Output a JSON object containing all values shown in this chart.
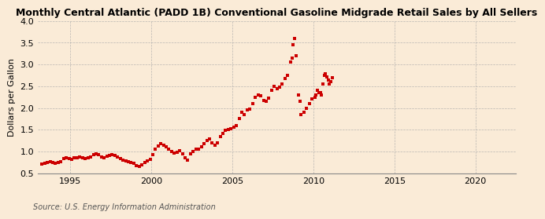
{
  "title": "Monthly Central Atlantic (PADD 1B) Conventional Gasoline Midgrade Retail Sales by All Sellers",
  "ylabel": "Dollars per Gallon",
  "source": "Source: U.S. Energy Information Administration",
  "background_color": "#faebd7",
  "line_color": "#cc0000",
  "marker": "s",
  "markersize": 3.2,
  "xlim": [
    1993.0,
    2022.5
  ],
  "ylim": [
    0.5,
    4.0
  ],
  "yticks": [
    0.5,
    1.0,
    1.5,
    2.0,
    2.5,
    3.0,
    3.5,
    4.0
  ],
  "xticks": [
    1995,
    2000,
    2005,
    2010,
    2015,
    2020
  ],
  "data": [
    [
      1993.25,
      0.71
    ],
    [
      1993.42,
      0.73
    ],
    [
      1993.58,
      0.75
    ],
    [
      1993.75,
      0.76
    ],
    [
      1993.92,
      0.74
    ],
    [
      1994.08,
      0.73
    ],
    [
      1994.25,
      0.75
    ],
    [
      1994.42,
      0.77
    ],
    [
      1994.58,
      0.84
    ],
    [
      1994.75,
      0.85
    ],
    [
      1994.92,
      0.83
    ],
    [
      1995.08,
      0.82
    ],
    [
      1995.25,
      0.85
    ],
    [
      1995.42,
      0.86
    ],
    [
      1995.58,
      0.88
    ],
    [
      1995.75,
      0.86
    ],
    [
      1995.92,
      0.84
    ],
    [
      1996.08,
      0.85
    ],
    [
      1996.25,
      0.87
    ],
    [
      1996.42,
      0.92
    ],
    [
      1996.58,
      0.95
    ],
    [
      1996.75,
      0.92
    ],
    [
      1996.92,
      0.88
    ],
    [
      1997.08,
      0.86
    ],
    [
      1997.25,
      0.89
    ],
    [
      1997.42,
      0.9
    ],
    [
      1997.58,
      0.92
    ],
    [
      1997.75,
      0.9
    ],
    [
      1997.92,
      0.88
    ],
    [
      1998.08,
      0.84
    ],
    [
      1998.25,
      0.8
    ],
    [
      1998.42,
      0.78
    ],
    [
      1998.58,
      0.77
    ],
    [
      1998.75,
      0.75
    ],
    [
      1998.92,
      0.72
    ],
    [
      1999.08,
      0.68
    ],
    [
      1999.25,
      0.65
    ],
    [
      1999.42,
      0.7
    ],
    [
      1999.58,
      0.75
    ],
    [
      1999.75,
      0.79
    ],
    [
      1999.92,
      0.82
    ],
    [
      2000.08,
      0.92
    ],
    [
      2000.25,
      1.05
    ],
    [
      2000.42,
      1.12
    ],
    [
      2000.58,
      1.18
    ],
    [
      2000.75,
      1.14
    ],
    [
      2000.92,
      1.1
    ],
    [
      2001.08,
      1.05
    ],
    [
      2001.25,
      1.0
    ],
    [
      2001.42,
      0.96
    ],
    [
      2001.58,
      0.98
    ],
    [
      2001.75,
      1.02
    ],
    [
      2001.92,
      0.95
    ],
    [
      2002.08,
      0.85
    ],
    [
      2002.25,
      0.8
    ],
    [
      2002.42,
      0.95
    ],
    [
      2002.58,
      1.0
    ],
    [
      2002.75,
      1.05
    ],
    [
      2002.92,
      1.05
    ],
    [
      2003.08,
      1.1
    ],
    [
      2003.25,
      1.18
    ],
    [
      2003.42,
      1.25
    ],
    [
      2003.58,
      1.28
    ],
    [
      2003.75,
      1.2
    ],
    [
      2003.92,
      1.15
    ],
    [
      2004.08,
      1.2
    ],
    [
      2004.25,
      1.35
    ],
    [
      2004.42,
      1.42
    ],
    [
      2004.58,
      1.48
    ],
    [
      2004.75,
      1.5
    ],
    [
      2004.92,
      1.52
    ],
    [
      2005.08,
      1.55
    ],
    [
      2005.25,
      1.6
    ],
    [
      2005.42,
      1.75
    ],
    [
      2005.58,
      1.9
    ],
    [
      2005.75,
      1.85
    ],
    [
      2005.92,
      1.95
    ],
    [
      2006.08,
      1.98
    ],
    [
      2006.25,
      2.1
    ],
    [
      2006.42,
      2.25
    ],
    [
      2006.58,
      2.3
    ],
    [
      2006.75,
      2.28
    ],
    [
      2006.92,
      2.18
    ],
    [
      2007.08,
      2.15
    ],
    [
      2007.25,
      2.22
    ],
    [
      2007.42,
      2.4
    ],
    [
      2007.58,
      2.5
    ],
    [
      2007.75,
      2.45
    ],
    [
      2007.92,
      2.48
    ],
    [
      2008.08,
      2.55
    ],
    [
      2008.25,
      2.68
    ],
    [
      2008.42,
      2.75
    ],
    [
      2008.58,
      3.05
    ],
    [
      2008.67,
      3.15
    ],
    [
      2008.75,
      3.45
    ],
    [
      2008.83,
      3.6
    ],
    [
      2008.92,
      3.2
    ],
    [
      2009.08,
      2.3
    ],
    [
      2009.17,
      2.15
    ],
    [
      2009.25,
      1.85
    ],
    [
      2009.42,
      1.9
    ],
    [
      2009.58,
      2.0
    ],
    [
      2009.75,
      2.1
    ],
    [
      2009.92,
      2.2
    ],
    [
      2010.08,
      2.25
    ],
    [
      2010.17,
      2.3
    ],
    [
      2010.25,
      2.4
    ],
    [
      2010.33,
      2.35
    ],
    [
      2010.42,
      2.35
    ],
    [
      2010.5,
      2.3
    ],
    [
      2010.58,
      2.55
    ],
    [
      2010.67,
      2.75
    ],
    [
      2010.75,
      2.78
    ],
    [
      2010.83,
      2.72
    ],
    [
      2010.92,
      2.65
    ],
    [
      2011.0,
      2.55
    ],
    [
      2011.08,
      2.6
    ],
    [
      2011.17,
      2.7
    ]
  ]
}
